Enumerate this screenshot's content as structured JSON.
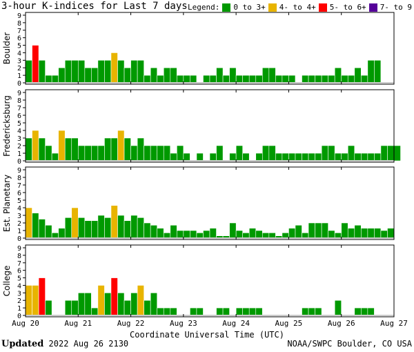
{
  "title": "3-hour K-indices for Last 7 days",
  "legend": {
    "label": "Legend:",
    "items": [
      {
        "label": "0 to 3+",
        "color": "#009900"
      },
      {
        "label": "4- to 4+",
        "color": "#e8b400"
      },
      {
        "label": "5- to 6+",
        "color": "#ff0000"
      },
      {
        "label": "7- to 9",
        "color": "#550099"
      }
    ]
  },
  "footer": {
    "updated_label": "Updated",
    "updated_value": "2022 Aug 26 2130",
    "credit": "NOAA/SWPC Boulder, CO USA"
  },
  "chart_data": {
    "type": "bar",
    "xlabel": "Coordinate Universal Time (UTC)",
    "x_ticks": [
      "Aug 20",
      "Aug 21",
      "Aug 22",
      "Aug 23",
      "Aug 24",
      "Aug 25",
      "Aug 26",
      "Aug 27"
    ],
    "ylim": [
      0,
      9
    ],
    "y_ticks": [
      "0",
      "1",
      "2",
      "3",
      "4",
      "5",
      "6",
      "7",
      "8",
      "9"
    ],
    "grid": false,
    "series": [
      {
        "name": "Boulder",
        "values": [
          3,
          5,
          3,
          1,
          1,
          2,
          3,
          3,
          3,
          2,
          2,
          3,
          3,
          4,
          3,
          2,
          3,
          3,
          1,
          2,
          1,
          2,
          2,
          1,
          1,
          1,
          0,
          1,
          1,
          2,
          1,
          2,
          1,
          1,
          1,
          1,
          2,
          2,
          1,
          1,
          1,
          0,
          1,
          1,
          1,
          1,
          1,
          2,
          1,
          1,
          2,
          1,
          3,
          3,
          0,
          0
        ]
      },
      {
        "name": "Fredericksburg",
        "values": [
          3,
          4,
          3,
          2,
          1,
          4,
          3,
          3,
          2,
          2,
          2,
          2,
          3,
          3,
          4,
          3,
          2,
          3,
          2,
          2,
          2,
          2,
          1,
          2,
          1,
          0,
          1,
          0,
          1,
          2,
          0,
          1,
          2,
          1,
          0,
          1,
          2,
          2,
          1,
          1,
          1,
          1,
          1,
          1,
          1,
          2,
          2,
          1,
          1,
          2,
          1,
          1,
          1,
          1,
          2,
          2,
          2,
          0
        ]
      },
      {
        "name": "Est. Planetary",
        "values": [
          4,
          3.3,
          2.5,
          1.7,
          0.7,
          1.3,
          2.7,
          4,
          2.7,
          2.3,
          2.3,
          3,
          2.7,
          4.3,
          3,
          2.3,
          3,
          2.7,
          2,
          1.7,
          1.3,
          0.7,
          1.7,
          1,
          1,
          1,
          0.7,
          1,
          1.3,
          0.3,
          0.3,
          2,
          1,
          0.7,
          1.3,
          1,
          0.7,
          0.7,
          0.3,
          0.7,
          1.3,
          1.7,
          0.7,
          2,
          2,
          2,
          1,
          0.7,
          2,
          1.3,
          1.7,
          1.3,
          1.3,
          1.3,
          1,
          1.3
        ]
      },
      {
        "name": "College",
        "values": [
          4,
          4,
          5,
          2,
          0,
          0,
          2,
          2,
          3,
          3,
          1,
          4,
          3,
          5,
          3,
          2,
          3,
          4,
          2,
          3,
          1,
          1,
          1,
          0,
          0,
          1,
          1,
          0,
          0,
          1,
          1,
          0,
          1,
          1,
          1,
          1,
          0,
          0,
          0,
          0,
          0,
          0,
          1,
          1,
          1,
          0,
          0,
          2,
          0,
          0,
          1,
          1,
          1,
          0,
          0,
          0,
          0,
          0
        ]
      }
    ]
  }
}
